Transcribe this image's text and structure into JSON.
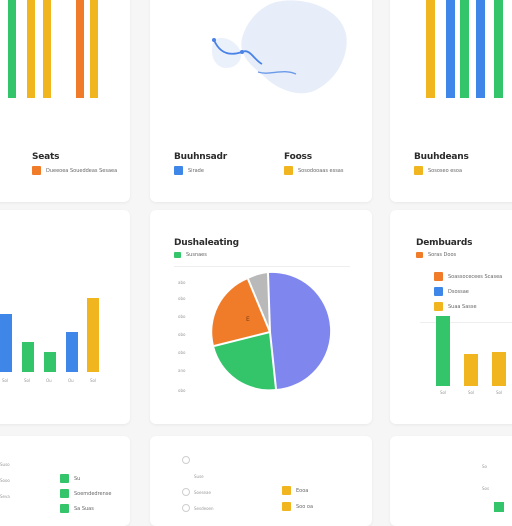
{
  "colors": {
    "green": "#34c56b",
    "orange": "#f07c2a",
    "blue": "#3e86e8",
    "yellow": "#f1b51f",
    "purple": "#7f86ee",
    "gray": "#b9b9b9"
  },
  "top_left": {
    "title": "Seats",
    "legend": "Dueeoea Soueddeas Sesaea"
  },
  "top_mid": {
    "title1": "Buuhnsadr",
    "legend1": "Sirade",
    "title2": "Fooss",
    "legend2": "Sosodooaas essas"
  },
  "top_right": {
    "title": "Buuhdeans",
    "legend": "Sososeo esoa"
  },
  "left_mid": {
    "ticks": [
      "Sol",
      "Sol",
      "Ou",
      "Ou",
      "Sol"
    ]
  },
  "center": {
    "title": "Dushaleating",
    "legend": "Susnaes",
    "pie_label": "E",
    "y_ticks": [
      "abo",
      "obo",
      "obo",
      "obo",
      "obo",
      "ano",
      "obo"
    ]
  },
  "right_mid": {
    "title": "Dembuards",
    "legend_header": "Soras Doos",
    "legend": [
      "Soassocecees Scasea",
      "Dsossae",
      "Suaa Sasse"
    ],
    "ticks": [
      "Sol",
      "Sol",
      "Sol"
    ]
  },
  "bottom_left": {
    "labels": [
      "Suso",
      "Sooo",
      "Seva"
    ],
    "legend": [
      "Su",
      "Soemdedrense",
      "Sa Suas"
    ]
  },
  "bottom_center": {
    "labels": [
      "Suse",
      "Soeseae",
      "Sesdeoen"
    ],
    "legend": [
      "Eooa",
      "Soo oa"
    ]
  },
  "bottom_right": {
    "labels": [
      "So",
      "Sos"
    ]
  }
}
